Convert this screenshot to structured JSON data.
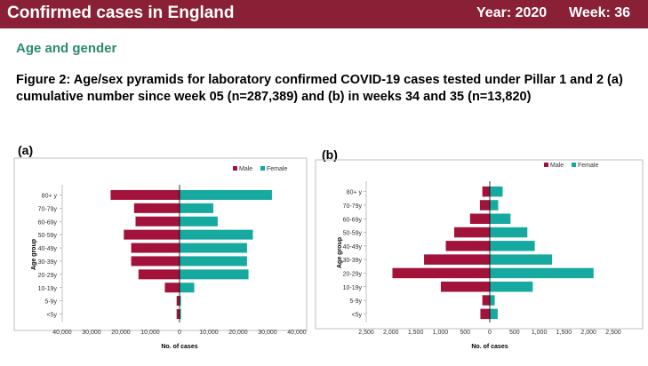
{
  "header": {
    "title": "Confirmed cases in England",
    "year": "Year: 2020",
    "week": "Week: 36"
  },
  "section_title": "Age and gender",
  "figure_caption": "Figure 2: Age/sex pyramids for laboratory confirmed COVID-19 cases tested under Pillar 1 and 2 (a) cumulative number since week 05 (n=287,389) and (b) in weeks 34 and 35 (n=13,820)",
  "colors": {
    "banner": "#8a2035",
    "male": "#a3123a",
    "female": "#16a9a0",
    "section": "#2a8a6e"
  },
  "chart_data": [
    {
      "type": "bar",
      "orientation": "horizontal-pyramid",
      "panel_label": "(a)",
      "xlabel": "No. of cases",
      "ylabel": "Age group",
      "categories": [
        "80+ y",
        "70-79y",
        "60-69y",
        "50-59y",
        "40-49y",
        "30-39y",
        "20-29y",
        "10-19y",
        "5-9y",
        "<5y"
      ],
      "series": [
        {
          "name": "Male",
          "values": [
            23500,
            15500,
            15000,
            19000,
            16500,
            16500,
            14000,
            5000,
            1000,
            1000
          ]
        },
        {
          "name": "Female",
          "values": [
            31500,
            11500,
            13000,
            25000,
            23000,
            23000,
            23500,
            5000,
            500,
            500
          ]
        }
      ],
      "xlim": [
        -40000,
        40000
      ],
      "xticks": [
        -40000,
        -30000,
        -20000,
        -10000,
        0,
        10000,
        20000,
        30000,
        40000
      ],
      "xtick_labels": [
        "40,000",
        "30,000",
        "20,000",
        "10,000",
        "0",
        "10,000",
        "20,000",
        "30,000",
        "40,000"
      ],
      "legend": "top-right",
      "grid": false
    },
    {
      "type": "bar",
      "orientation": "horizontal-pyramid",
      "panel_label": "(b)",
      "xlabel": "No. of cases",
      "ylabel": "Age group",
      "categories": [
        "80+ y",
        "70-79y",
        "60-69y",
        "50-59y",
        "40-49y",
        "30-39y",
        "20-29y",
        "10-19y",
        "5-9y",
        "<5y"
      ],
      "series": [
        {
          "name": "Male",
          "values": [
            150,
            200,
            400,
            720,
            890,
            1330,
            1970,
            990,
            150,
            190
          ]
        },
        {
          "name": "Female",
          "values": [
            260,
            170,
            420,
            760,
            910,
            1260,
            2100,
            870,
            100,
            160
          ]
        }
      ],
      "xlim": [
        -2500,
        2500
      ],
      "xticks": [
        -2500,
        -2000,
        -1500,
        -1000,
        -500,
        0,
        500,
        1000,
        1500,
        2000,
        2500
      ],
      "xtick_labels": [
        "2,500",
        "2,000",
        "1,500",
        "1,000",
        "500",
        "0",
        "500",
        "1,000",
        "1,500",
        "2,000",
        "2,500"
      ],
      "legend": "top-right",
      "grid": false
    }
  ]
}
